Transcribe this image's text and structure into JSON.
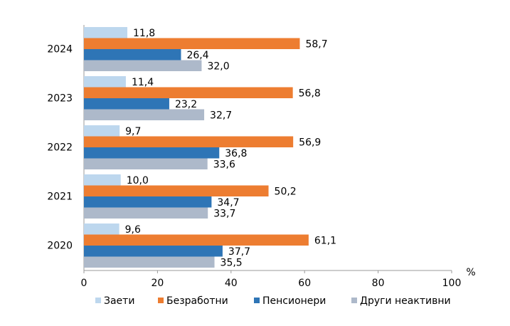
{
  "chart_data": {
    "type": "bar",
    "orientation": "horizontal",
    "categories": [
      "2024",
      "2023",
      "2022",
      "2021",
      "2020"
    ],
    "series": [
      {
        "name": "Заети",
        "color": "#bdd7ee",
        "values": [
          11.8,
          11.4,
          9.7,
          10.0,
          9.6
        ],
        "value_labels": [
          "11,8",
          "11,4",
          "9,7",
          "10,0",
          "9,6"
        ]
      },
      {
        "name": "Безработни",
        "color": "#ed7d31",
        "values": [
          58.7,
          56.8,
          56.9,
          50.2,
          61.1
        ],
        "value_labels": [
          "58,7",
          "56,8",
          "56,9",
          "50,2",
          "61,1"
        ]
      },
      {
        "name": "Пенсионери",
        "color": "#2e75b6",
        "values": [
          26.4,
          23.2,
          36.8,
          34.7,
          37.7
        ],
        "value_labels": [
          "26,4",
          "23,2",
          "36,8",
          "34,7",
          "37,7"
        ]
      },
      {
        "name": "Други неактивни",
        "color": "#adb9ca",
        "values": [
          32.0,
          32.7,
          33.6,
          33.7,
          35.5
        ],
        "value_labels": [
          "32,0",
          "32,7",
          "33,6",
          "33,7",
          "35,5"
        ]
      }
    ],
    "x_label": "%",
    "xlim": [
      0,
      100
    ],
    "xticks": [
      0,
      20,
      40,
      60,
      80,
      100
    ],
    "legend": "bottom"
  }
}
